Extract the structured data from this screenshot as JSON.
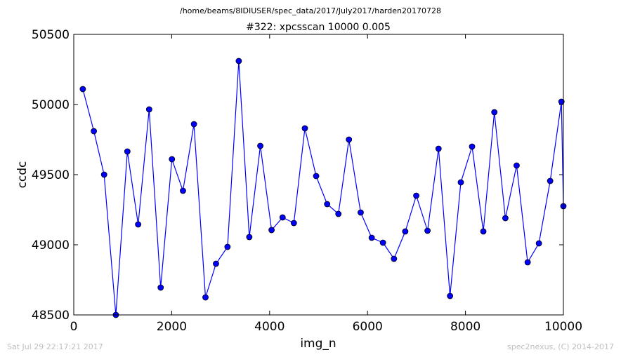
{
  "header": {
    "suptitle": "/home/beams/8IDIUSER/spec_data/2017/July2017/harden20170728"
  },
  "footer": {
    "timestamp": "Sat Jul 29 22:17:21 2017",
    "credit": "spec2nexus, (C) 2014-2017"
  },
  "chart_data": {
    "type": "line",
    "title": "#322: xpcsscan 10000 0.005",
    "xlabel": "img_n",
    "ylabel": "ccdc",
    "xlim": [
      0,
      10000
    ],
    "ylim": [
      48500,
      50500
    ],
    "xticks": [
      0,
      2000,
      4000,
      6000,
      8000,
      10000
    ],
    "yticks": [
      48500,
      49000,
      49500,
      50000,
      50500
    ],
    "xtick_labels": [
      "0",
      "2000",
      "4000",
      "6000",
      "8000",
      "10000"
    ],
    "ytick_labels": [
      "48500",
      "49000",
      "49500",
      "50000",
      "50500"
    ],
    "grid": false,
    "color": "#0000ff",
    "marker": "circle",
    "x": [
      185,
      410,
      620,
      860,
      1095,
      1315,
      1540,
      1775,
      2005,
      2230,
      2455,
      2690,
      2905,
      3140,
      3370,
      3585,
      3810,
      4040,
      4265,
      4495,
      4720,
      4950,
      5175,
      5405,
      5620,
      5860,
      6085,
      6315,
      6540,
      6770,
      6995,
      7225,
      7450,
      7685,
      7905,
      8135,
      8365,
      8590,
      8815,
      9045,
      9270,
      9500,
      9730,
      9960,
      10000
    ],
    "y": [
      50110,
      49810,
      49500,
      48500,
      49665,
      49145,
      49965,
      48695,
      49610,
      49385,
      49860,
      48625,
      48865,
      48985,
      50310,
      49055,
      49705,
      49105,
      49195,
      49155,
      49830,
      49490,
      49290,
      49220,
      49750,
      49230,
      49050,
      49015,
      48900,
      49095,
      49350,
      49100,
      49685,
      48635,
      49445,
      49700,
      49095,
      49945,
      49190,
      49565,
      48875,
      49010,
      49455,
      50020,
      49275
    ]
  }
}
